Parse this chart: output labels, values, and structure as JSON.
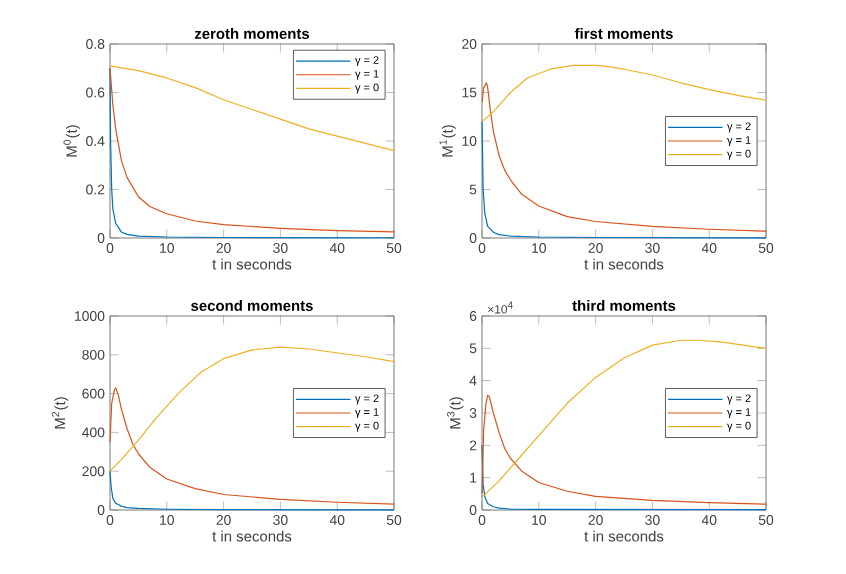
{
  "chart_data": [
    {
      "type": "line",
      "title": "zeroth moments",
      "xlabel": "t in seconds",
      "ylabel": "M$^{0}$(t)",
      "xlim": [
        0,
        50
      ],
      "ylim": [
        0,
        0.8
      ],
      "xticks": [
        0,
        10,
        20,
        30,
        40,
        50
      ],
      "yticks": [
        0,
        0.2,
        0.4,
        0.6,
        0.8
      ],
      "legend": "top right",
      "series": [
        {
          "name": "γ = 2",
          "color": "#0072bd",
          "x": [
            0,
            0.1,
            0.3,
            0.5,
            1,
            2,
            3,
            5,
            10,
            20,
            50
          ],
          "values": [
            0.7,
            0.4,
            0.2,
            0.12,
            0.06,
            0.025,
            0.015,
            0.008,
            0.004,
            0.002,
            0.001
          ]
        },
        {
          "name": "γ = 1",
          "color": "#d95319",
          "x": [
            0,
            0.5,
            1,
            2,
            3,
            5,
            7,
            10,
            15,
            20,
            30,
            40,
            50
          ],
          "values": [
            0.7,
            0.55,
            0.45,
            0.32,
            0.25,
            0.17,
            0.13,
            0.1,
            0.07,
            0.055,
            0.04,
            0.03,
            0.025
          ]
        },
        {
          "name": "γ = 0",
          "color": "#edb120",
          "x": [
            0,
            5,
            10,
            15,
            20,
            25,
            30,
            35,
            40,
            45,
            50
          ],
          "values": [
            0.71,
            0.69,
            0.66,
            0.62,
            0.57,
            0.53,
            0.49,
            0.45,
            0.42,
            0.39,
            0.36
          ]
        }
      ]
    },
    {
      "type": "line",
      "title": "first moments",
      "xlabel": "t in seconds",
      "ylabel": "M$^{1}$(t)",
      "xlim": [
        0,
        50
      ],
      "ylim": [
        0,
        20
      ],
      "xticks": [
        0,
        10,
        20,
        30,
        40,
        50
      ],
      "yticks": [
        0,
        5,
        10,
        15,
        20
      ],
      "legend": "right",
      "series": [
        {
          "name": "γ = 2",
          "color": "#0072bd",
          "x": [
            0,
            0.2,
            0.5,
            1,
            2,
            3,
            5,
            10,
            20,
            50
          ],
          "values": [
            12,
            5,
            2.5,
            1.2,
            0.6,
            0.35,
            0.2,
            0.1,
            0.05,
            0.02
          ]
        },
        {
          "name": "γ = 1",
          "color": "#d95319",
          "x": [
            0,
            0.3,
            0.8,
            1,
            1.5,
            2,
            3,
            4,
            5,
            7,
            10,
            15,
            20,
            30,
            40,
            50
          ],
          "values": [
            14,
            15.5,
            16,
            15.5,
            13,
            11,
            8.5,
            7,
            6,
            4.5,
            3.3,
            2.2,
            1.7,
            1.2,
            0.9,
            0.7
          ]
        },
        {
          "name": "γ = 0",
          "color": "#edb120",
          "x": [
            0,
            2,
            5,
            8,
            12,
            16,
            20,
            22,
            25,
            30,
            35,
            40,
            45,
            50
          ],
          "values": [
            12,
            13,
            15,
            16.5,
            17.4,
            17.8,
            17.8,
            17.7,
            17.4,
            16.8,
            16,
            15.3,
            14.7,
            14.2
          ]
        }
      ]
    },
    {
      "type": "line",
      "title": "second moments",
      "xlabel": "t in seconds",
      "ylabel": "M$^{2}$(t)",
      "xlim": [
        0,
        50
      ],
      "ylim": [
        0,
        1000
      ],
      "xticks": [
        0,
        10,
        20,
        30,
        40,
        50
      ],
      "yticks": [
        0,
        200,
        400,
        600,
        800,
        1000
      ],
      "legend": "right",
      "series": [
        {
          "name": "γ = 2",
          "color": "#0072bd",
          "x": [
            0,
            0.2,
            0.5,
            1,
            2,
            3,
            5,
            10,
            20,
            50
          ],
          "values": [
            200,
            120,
            60,
            35,
            20,
            12,
            8,
            4,
            2,
            1
          ]
        },
        {
          "name": "γ = 1",
          "color": "#d95319",
          "x": [
            0,
            0.3,
            0.8,
            1,
            1.5,
            2,
            3,
            4,
            5,
            7,
            10,
            15,
            20,
            30,
            40,
            50
          ],
          "values": [
            350,
            550,
            620,
            630,
            590,
            520,
            420,
            340,
            290,
            220,
            160,
            110,
            80,
            55,
            40,
            30
          ]
        },
        {
          "name": "γ = 0",
          "color": "#edb120",
          "x": [
            0,
            2,
            5,
            8,
            12,
            16,
            20,
            25,
            30,
            35,
            40,
            45,
            50
          ],
          "values": [
            200,
            260,
            360,
            470,
            600,
            710,
            780,
            825,
            840,
            830,
            810,
            790,
            765
          ]
        }
      ]
    },
    {
      "type": "line",
      "title": "third moments",
      "xlabel": "t in seconds",
      "ylabel": "M$^{3}$(t)",
      "annotations": [
        "×10$^{4}$"
      ],
      "xlim": [
        0,
        50
      ],
      "ylim": [
        0,
        6
      ],
      "xticks": [
        0,
        10,
        20,
        30,
        40,
        50
      ],
      "yticks": [
        0,
        1,
        2,
        3,
        4,
        5,
        6
      ],
      "legend": "right",
      "series": [
        {
          "name": "γ = 2",
          "color": "#0072bd",
          "x": [
            0,
            0.2,
            0.5,
            1,
            2,
            3,
            5,
            10,
            50
          ],
          "values": [
            2,
            0.8,
            0.4,
            0.2,
            0.1,
            0.06,
            0.03,
            0.02,
            0.01
          ]
        },
        {
          "name": "γ = 1",
          "color": "#d95319",
          "x": [
            0,
            0.3,
            0.7,
            1,
            1.3,
            2,
            3,
            4,
            5,
            7,
            10,
            15,
            20,
            30,
            40,
            50
          ],
          "values": [
            0.5,
            2.5,
            3.3,
            3.55,
            3.5,
            3,
            2.4,
            1.9,
            1.6,
            1.2,
            0.85,
            0.58,
            0.42,
            0.3,
            0.23,
            0.18
          ]
        },
        {
          "name": "γ = 0",
          "color": "#edb120",
          "x": [
            0,
            3,
            6,
            10,
            15,
            20,
            25,
            30,
            35,
            38,
            42,
            46,
            50
          ],
          "values": [
            0.4,
            0.9,
            1.5,
            2.3,
            3.3,
            4.1,
            4.7,
            5.1,
            5.25,
            5.25,
            5.2,
            5.1,
            5
          ]
        }
      ]
    }
  ]
}
